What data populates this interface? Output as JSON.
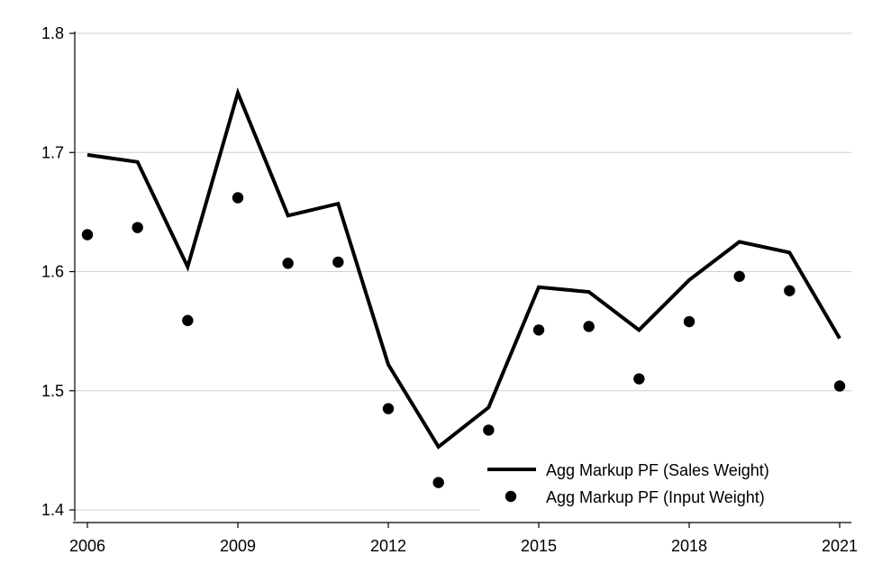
{
  "chart_data": {
    "type": "line",
    "title": "",
    "xlabel": "",
    "ylabel": "",
    "xlim": [
      2006,
      2021
    ],
    "ylim": [
      1.4,
      1.8
    ],
    "x_ticks": [
      2006,
      2009,
      2012,
      2015,
      2018,
      2021
    ],
    "y_ticks": [
      1.4,
      1.5,
      1.6,
      1.7,
      1.8
    ],
    "x_tick_labels": [
      "2006",
      "2009",
      "2012",
      "2015",
      "2018",
      "2021"
    ],
    "y_tick_labels": [
      "1.4",
      "1.5",
      "1.6",
      "1.7",
      "1.8"
    ],
    "grid": "horizontal",
    "legend_position": "bottom-right",
    "x": [
      2006,
      2007,
      2008,
      2009,
      2010,
      2011,
      2012,
      2013,
      2014,
      2015,
      2016,
      2017,
      2018,
      2019,
      2020,
      2021
    ],
    "series": [
      {
        "name": "Agg Markup PF (Sales Weight)",
        "style": "line",
        "color": "#000000",
        "values": [
          1.698,
          1.692,
          1.604,
          1.75,
          1.647,
          1.657,
          1.522,
          1.453,
          1.486,
          1.587,
          1.583,
          1.551,
          1.593,
          1.625,
          1.616,
          1.544
        ]
      },
      {
        "name": "Agg Markup PF (Input Weight)",
        "style": "markers",
        "color": "#000000",
        "values": [
          1.631,
          1.637,
          1.559,
          1.662,
          1.607,
          1.608,
          1.485,
          1.423,
          1.467,
          1.551,
          1.554,
          1.51,
          1.558,
          1.596,
          1.584,
          1.504
        ]
      }
    ]
  }
}
